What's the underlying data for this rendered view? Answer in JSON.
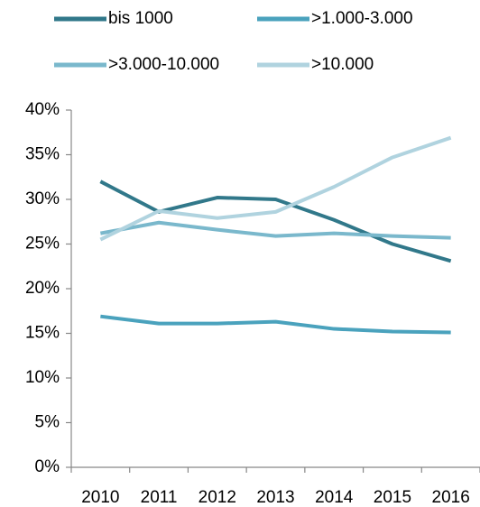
{
  "chart_data": {
    "type": "line",
    "categories": [
      "2010",
      "2011",
      "2012",
      "2013",
      "2014",
      "2015",
      "2016"
    ],
    "series": [
      {
        "name": "bis 1000",
        "color": "#31788a",
        "values": [
          32.0,
          28.6,
          30.2,
          30.0,
          27.7,
          25.0,
          23.1
        ]
      },
      {
        "name": ">1.000-3.000",
        "color": "#4aa2bd",
        "values": [
          16.9,
          16.1,
          16.1,
          16.3,
          15.5,
          15.2,
          15.1
        ]
      },
      {
        "name": ">3.000-10.000",
        "color": "#7ab8cc",
        "values": [
          26.2,
          27.4,
          26.6,
          25.9,
          26.2,
          25.9,
          25.7
        ]
      },
      {
        "name": ">10.000",
        "color": "#b0d3df",
        "values": [
          25.5,
          28.7,
          27.9,
          28.6,
          31.4,
          34.7,
          36.9
        ]
      }
    ],
    "ylim": [
      0,
      40
    ],
    "yticks": [
      {
        "value": 0,
        "label": "0%"
      },
      {
        "value": 5,
        "label": "5%"
      },
      {
        "value": 10,
        "label": "10%"
      },
      {
        "value": 15,
        "label": "15%"
      },
      {
        "value": 20,
        "label": "20%"
      },
      {
        "value": 25,
        "label": "25%"
      },
      {
        "value": 30,
        "label": "30%"
      },
      {
        "value": 35,
        "label": "35%"
      },
      {
        "value": 40,
        "label": "40%"
      }
    ],
    "grid": false,
    "legend": "top"
  }
}
